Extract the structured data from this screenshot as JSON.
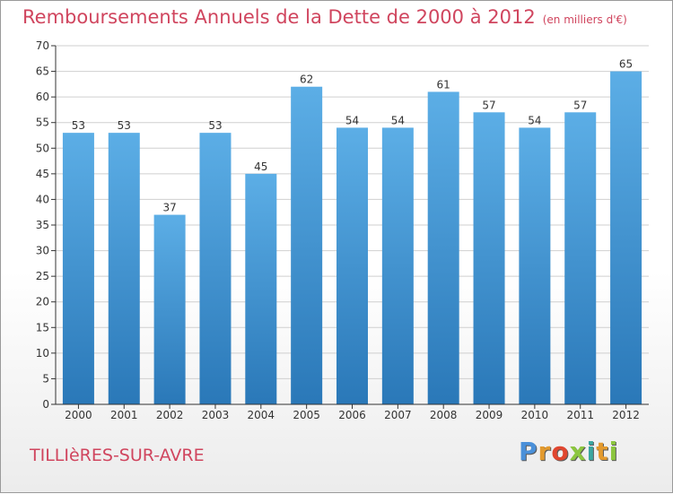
{
  "chart_data": {
    "type": "bar",
    "title": "Remboursements Annuels de la Dette de 2000 à 2012",
    "subtitle": "(en milliers d'€)",
    "categories": [
      "2000",
      "2001",
      "2002",
      "2003",
      "2004",
      "2005",
      "2006",
      "2007",
      "2008",
      "2009",
      "2010",
      "2011",
      "2012"
    ],
    "values": [
      53,
      53,
      37,
      53,
      45,
      62,
      54,
      54,
      61,
      57,
      54,
      57,
      65
    ],
    "ylim": [
      0,
      70
    ],
    "yticks": [
      0,
      5,
      10,
      15,
      20,
      25,
      30,
      35,
      40,
      45,
      50,
      55,
      60,
      65,
      70
    ],
    "xlabel": "",
    "ylabel": "",
    "grid": true,
    "bar_color_top": "#5caee6",
    "bar_color_bottom": "#2a78b8"
  },
  "footer": {
    "town": "TILLIèRES-SUR-AVRE",
    "logo": "Proxiti",
    "logo_colors": [
      "#4a90d9",
      "#e39a2e",
      "#e0462f",
      "#8cc63f",
      "#3aa6a0",
      "#e39a2e",
      "#8cc63f"
    ]
  },
  "colors": {
    "title": "#d0455e",
    "axis": "#333333",
    "grid": "#cfcfcf"
  }
}
